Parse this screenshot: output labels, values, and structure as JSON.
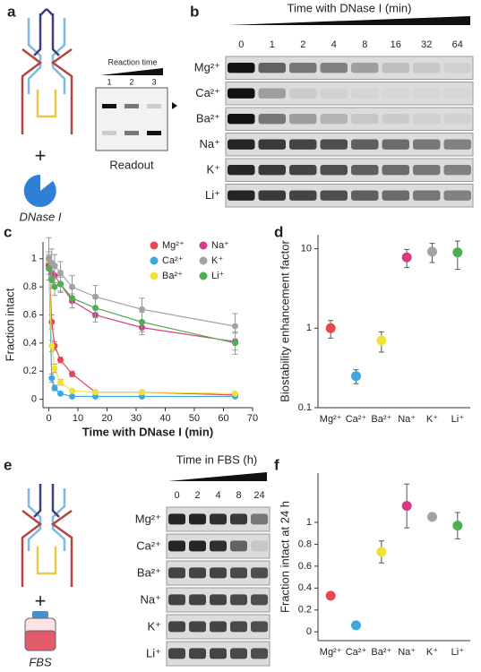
{
  "panel_labels": [
    "a",
    "b",
    "c",
    "d",
    "e",
    "f"
  ],
  "panel_a": {
    "reaction_time": "Reaction time",
    "lanes": [
      "1",
      "2",
      "3"
    ],
    "plus": "+",
    "readout": "Readout",
    "enzyme": "DNase I"
  },
  "panel_b": {
    "title": "Time with DNase I (min)",
    "times": [
      "0",
      "1",
      "2",
      "4",
      "8",
      "16",
      "32",
      "64"
    ],
    "rows": [
      "Mg²⁺",
      "Ca²⁺",
      "Ba²⁺",
      "Na⁺",
      "K⁺",
      "Li⁺"
    ]
  },
  "panel_e": {
    "title": "Time in FBS (h)",
    "times": [
      "0",
      "2",
      "4",
      "8",
      "24"
    ],
    "rows": [
      "Mg²⁺",
      "Ca²⁺",
      "Ba²⁺",
      "Na⁺",
      "K⁺",
      "Li⁺"
    ],
    "plus": "+",
    "medium": "FBS"
  },
  "chart_data": [
    {
      "type": "line",
      "xlabel": "Time with DNase I (min)",
      "ylabel": "Fraction intact",
      "x": [
        0,
        1,
        2,
        4,
        8,
        16,
        32,
        64
      ],
      "xlim": [
        -2,
        70
      ],
      "xticks": [
        0,
        10,
        20,
        30,
        40,
        50,
        60,
        70
      ],
      "ylim": [
        -0.06,
        1.12
      ],
      "yticks": [
        0,
        0.2,
        0.4,
        0.6,
        0.8,
        1
      ],
      "legend": "upper right",
      "series": [
        {
          "name": "Mg²⁺",
          "color": "#e8474f",
          "values": [
            1.0,
            0.55,
            0.38,
            0.28,
            0.18,
            0.05,
            0.05,
            0.03
          ],
          "errors": [
            0.05,
            0.05,
            0.03,
            0.02,
            0.02,
            0.01,
            0.01,
            0.01
          ]
        },
        {
          "name": "Ca²⁺",
          "color": "#3ea6e0",
          "values": [
            0.97,
            0.15,
            0.08,
            0.04,
            0.02,
            0.02,
            0.02,
            0.02
          ],
          "errors": [
            0.05,
            0.03,
            0.02,
            0.01,
            0.01,
            0.01,
            0.01,
            0.01
          ]
        },
        {
          "name": "Ba²⁺",
          "color": "#f0e23a",
          "values": [
            0.98,
            0.38,
            0.22,
            0.12,
            0.06,
            0.05,
            0.05,
            0.04
          ],
          "errors": [
            0.05,
            0.04,
            0.03,
            0.02,
            0.01,
            0.01,
            0.01,
            0.01
          ]
        },
        {
          "name": "Na⁺",
          "color": "#d63a85",
          "values": [
            0.95,
            0.9,
            0.88,
            0.82,
            0.7,
            0.6,
            0.51,
            0.41
          ],
          "errors": [
            0.06,
            0.05,
            0.05,
            0.05,
            0.05,
            0.05,
            0.05,
            0.06
          ]
        },
        {
          "name": "K⁺",
          "color": "#a3a3a3",
          "values": [
            1.0,
            0.97,
            0.95,
            0.9,
            0.8,
            0.73,
            0.64,
            0.52
          ],
          "errors": [
            0.15,
            0.1,
            0.08,
            0.08,
            0.08,
            0.08,
            0.08,
            0.09
          ]
        },
        {
          "name": "Li⁺",
          "color": "#4caf50",
          "values": [
            0.93,
            0.85,
            0.8,
            0.82,
            0.72,
            0.65,
            0.55,
            0.4
          ],
          "errors": [
            0.08,
            0.06,
            0.06,
            0.06,
            0.07,
            0.07,
            0.07,
            0.08
          ]
        }
      ]
    },
    {
      "type": "scatter",
      "ylabel": "Biostability enhancement factor",
      "log_scale": true,
      "categories": [
        "Mg²⁺",
        "Ca²⁺",
        "Ba²⁺",
        "Na⁺",
        "K⁺",
        "Li⁺"
      ],
      "values": [
        1.0,
        0.25,
        0.7,
        7.8,
        9.2,
        9.0
      ],
      "errors": [
        0.25,
        0.05,
        0.2,
        2,
        2.5,
        3.5
      ],
      "colors": [
        "#e8474f",
        "#3ea6e0",
        "#f0e23a",
        "#d63a85",
        "#a3a3a3",
        "#4caf50"
      ],
      "ylim": [
        0.1,
        15
      ],
      "yticks": [
        0.1,
        1,
        10
      ]
    },
    {
      "type": "scatter",
      "ylabel": "Fraction intact at 24 h",
      "categories": [
        "Mg²⁺",
        "Ca²⁺",
        "Ba²⁺",
        "Na⁺",
        "K⁺",
        "Li⁺"
      ],
      "values": [
        0.33,
        0.06,
        0.73,
        1.15,
        1.05,
        0.97
      ],
      "errors": [
        0.02,
        0.01,
        0.1,
        0.2,
        0.01,
        0.12
      ],
      "colors": [
        "#e8474f",
        "#3ea6e0",
        "#f0e23a",
        "#d63a85",
        "#a3a3a3",
        "#4caf50"
      ],
      "ylim": [
        -0.08,
        1.45
      ],
      "yticks": [
        0,
        0.2,
        0.4,
        0.6,
        0.8,
        1
      ]
    }
  ]
}
